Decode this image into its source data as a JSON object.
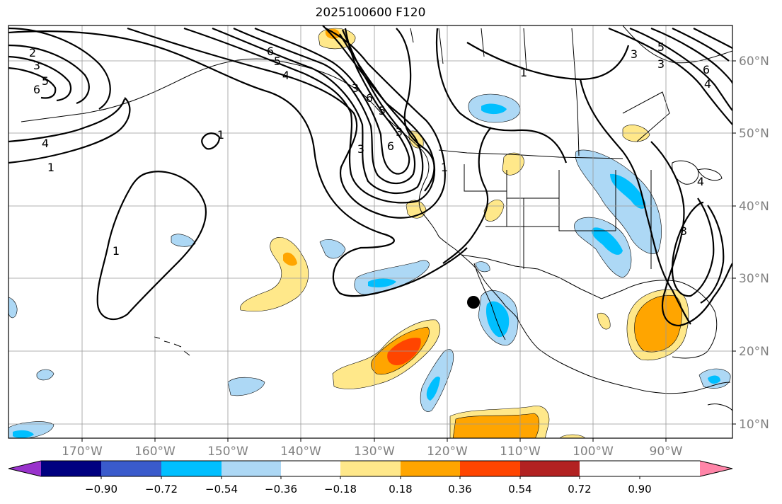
{
  "title": "2025100600 F120",
  "lon_ticks": [
    "170°W",
    "160°W",
    "150°W",
    "140°W",
    "130°W",
    "120°W",
    "110°W",
    "100°W",
    "90°W"
  ],
  "lat_ticks": [
    "60°N",
    "50°N",
    "40°N",
    "30°N",
    "20°N",
    "10°N"
  ],
  "colorbar": {
    "labels": [
      "−0.90",
      "−0.72",
      "−0.54",
      "−0.36",
      "−0.18",
      "0.18",
      "0.36",
      "0.54",
      "0.72",
      "0.90"
    ],
    "colors": [
      "#9932cc",
      "#000080",
      "#3a5bcc",
      "#00bfff",
      "#add8f5",
      "#ffffff",
      "#ffe88a",
      "#ffa500",
      "#ff4500",
      "#b22222",
      "#ff85a8"
    ]
  },
  "contour_labels": [
    "2",
    "3",
    "5",
    "6",
    "4",
    "1",
    "1",
    "1",
    "6",
    "5",
    "4",
    "3",
    "6",
    "3",
    "1",
    "3",
    "6",
    "5",
    "3",
    "4",
    "6",
    "1",
    "3",
    "4",
    "5",
    "3"
  ],
  "colors": {
    "shade_light_blue": "#add8f5",
    "shade_blue": "#00bfff",
    "shade_yellow": "#ffe88a",
    "shade_orange": "#ffa500",
    "shade_red": "#ff4500"
  }
}
